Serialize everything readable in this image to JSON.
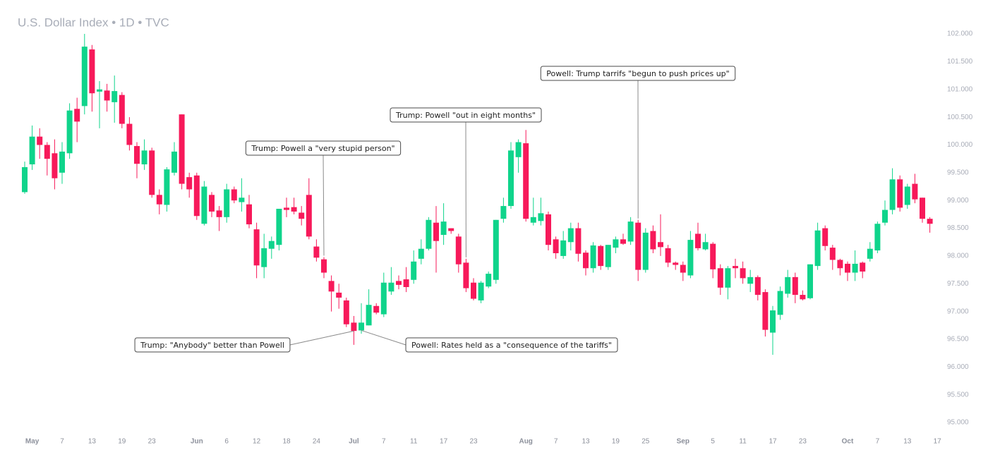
{
  "chart_data": {
    "type": "candlestick",
    "title": "U.S. Dollar Index • 1D • TVC",
    "up_color": "#0fd48b",
    "down_color": "#f7195a",
    "ylim": [
      94.29,
      102.61
    ],
    "yticks": [
      {
        "value": 95,
        "label": "95.000"
      },
      {
        "value": 95.5,
        "label": "95.500"
      },
      {
        "value": 96,
        "label": "96.000"
      },
      {
        "value": 96.5,
        "label": "96.500"
      },
      {
        "value": 97,
        "label": "97.000"
      },
      {
        "value": 97.5,
        "label": "97.500"
      },
      {
        "value": 98,
        "label": "98.000"
      },
      {
        "value": 98.5,
        "label": "98.500"
      },
      {
        "value": 99,
        "label": "99.000"
      },
      {
        "value": 99.5,
        "label": "99.500"
      },
      {
        "value": 100,
        "label": "100.000"
      },
      {
        "value": 100.5,
        "label": "100.500"
      },
      {
        "value": 101,
        "label": "101.000"
      },
      {
        "value": 101.5,
        "label": "101.500"
      },
      {
        "value": 102,
        "label": "102.000"
      }
    ],
    "categories": [
      null,
      "May",
      null,
      null,
      null,
      "7",
      null,
      null,
      null,
      "13",
      null,
      null,
      null,
      "19",
      null,
      null,
      null,
      "23",
      null,
      null,
      null,
      null,
      null,
      "Jun",
      null,
      null,
      null,
      "6",
      null,
      null,
      null,
      "12",
      null,
      null,
      null,
      "18",
      null,
      null,
      null,
      "24",
      null,
      null,
      null,
      null,
      "Jul",
      null,
      null,
      null,
      "7",
      null,
      null,
      null,
      "11",
      null,
      null,
      null,
      "17",
      null,
      null,
      null,
      "23",
      null,
      null,
      null,
      null,
      null,
      null,
      "Aug",
      null,
      null,
      null,
      "7",
      null,
      null,
      null,
      "13",
      null,
      null,
      null,
      "19",
      null,
      null,
      null,
      "25",
      null,
      null,
      null,
      null,
      "Sep",
      null,
      null,
      null,
      "5",
      null,
      null,
      null,
      "11",
      null,
      null,
      null,
      "17",
      null,
      null,
      null,
      "23",
      null,
      null,
      null,
      null,
      null,
      "Oct",
      null,
      null,
      null,
      "7",
      null,
      null,
      null,
      "13",
      null,
      null,
      null,
      "17"
    ],
    "open": [
      99.15,
      99.65,
      100.15,
      100.0,
      99.85,
      99.5,
      99.85,
      100.65,
      100.7,
      101.72,
      100.96,
      100.98,
      100.77,
      100.9,
      100.38,
      99.98,
      99.65,
      99.9,
      99.1,
      98.92,
      99.5,
      100.55,
      99.42,
      99.45,
      98.58,
      99.1,
      98.82,
      98.7,
      99.2,
      98.97,
      98.93,
      98.48,
      97.8,
      98.13,
      98.2,
      98.87,
      98.88,
      98.78,
      99.1,
      98.17,
      97.94,
      97.55,
      97.34,
      97.2,
      96.8,
      96.66,
      96.75,
      97.1,
      96.95,
      97.36,
      97.55,
      97.58,
      97.57,
      97.95,
      98.13,
      98.6,
      98.38,
      98.5,
      98.35,
      97.88,
      97.52,
      97.2,
      97.45,
      97.57,
      98.67,
      98.9,
      99.78,
      100.03,
      98.6,
      98.63,
      98.75,
      98.3,
      98.0,
      98.25,
      98.5,
      98.06,
      97.78,
      98.18,
      97.8,
      98.15,
      98.3,
      98.26,
      98.6,
      97.75,
      98.45,
      98.25,
      98.14,
      97.88,
      97.84,
      97.65,
      98.4,
      98.12,
      98.22,
      97.78,
      97.43,
      97.82,
      97.78,
      97.5,
      97.62,
      97.35,
      96.62,
      96.94,
      97.32,
      97.62,
      97.3,
      97.24,
      97.82,
      98.5,
      98.15,
      97.93,
      97.86,
      97.7,
      97.88,
      97.95,
      98.1,
      98.6,
      98.83,
      99.38,
      98.92,
      99.3,
      99.05,
      98.67,
      null
    ],
    "high": [
      99.7,
      100.35,
      100.3,
      100.05,
      100.1,
      100.05,
      100.75,
      100.85,
      102.0,
      101.8,
      101.15,
      101.1,
      101.25,
      100.95,
      100.5,
      100.05,
      100.1,
      99.95,
      99.2,
      99.6,
      100.05,
      100.55,
      99.5,
      99.5,
      99.35,
      99.15,
      98.9,
      99.3,
      99.25,
      99.4,
      99.1,
      98.6,
      98.4,
      98.35,
      98.85,
      99.05,
      99.05,
      98.9,
      99.4,
      98.3,
      97.98,
      97.65,
      97.5,
      97.25,
      96.92,
      97.15,
      97.4,
      97.15,
      97.7,
      97.8,
      97.65,
      97.8,
      98.1,
      98.3,
      98.7,
      98.9,
      98.95,
      98.5,
      98.4,
      97.95,
      97.6,
      97.55,
      97.72,
      98.65,
      99.05,
      100.05,
      100.1,
      100.27,
      99.05,
      99.05,
      98.8,
      98.35,
      98.45,
      98.6,
      98.6,
      98.1,
      98.25,
      98.2,
      98.2,
      98.35,
      98.4,
      98.7,
      98.65,
      98.5,
      98.55,
      98.75,
      98.2,
      97.9,
      97.9,
      98.45,
      98.6,
      98.4,
      98.25,
      97.85,
      97.82,
      97.95,
      97.9,
      97.75,
      97.65,
      97.4,
      97.1,
      97.45,
      97.75,
      97.7,
      97.38,
      97.85,
      98.6,
      98.55,
      98.2,
      97.95,
      97.9,
      98.1,
      97.9,
      98.25,
      98.62,
      99.0,
      99.58,
      99.45,
      99.3,
      99.48,
      99.05,
      98.7,
      null
    ],
    "low": [
      99.12,
      99.55,
      99.75,
      99.45,
      99.2,
      99.3,
      99.75,
      100.05,
      100.55,
      100.6,
      100.3,
      100.6,
      100.4,
      100.3,
      99.9,
      99.4,
      99.55,
      99.05,
      98.75,
      98.8,
      99.45,
      99.2,
      99.05,
      98.65,
      98.55,
      98.7,
      98.45,
      98.6,
      98.95,
      98.8,
      98.5,
      97.6,
      97.6,
      97.95,
      98.1,
      98.7,
      98.75,
      98.55,
      98.3,
      97.9,
      97.6,
      97.0,
      97.05,
      96.72,
      96.4,
      96.6,
      96.75,
      96.95,
      96.9,
      97.3,
      97.4,
      97.35,
      97.5,
      97.85,
      98.1,
      97.7,
      98.2,
      98.4,
      97.7,
      97.35,
      97.2,
      97.15,
      97.42,
      97.5,
      98.6,
      98.85,
      99.5,
      98.62,
      98.55,
      98.55,
      98.1,
      97.95,
      97.95,
      98.1,
      97.9,
      97.65,
      97.7,
      97.75,
      97.75,
      98.05,
      98.2,
      98.2,
      97.55,
      97.7,
      98.05,
      98.0,
      97.8,
      97.75,
      97.55,
      97.6,
      98.1,
      98.1,
      97.6,
      97.3,
      97.22,
      97.6,
      97.5,
      97.35,
      97.2,
      96.55,
      96.22,
      96.85,
      97.25,
      97.15,
      97.2,
      97.22,
      97.75,
      98.1,
      97.75,
      97.65,
      97.55,
      97.55,
      97.6,
      97.9,
      98.05,
      98.55,
      98.75,
      98.8,
      98.85,
      98.95,
      98.6,
      98.42,
      null
    ],
    "close": [
      99.6,
      100.15,
      100.0,
      99.75,
      99.4,
      99.88,
      100.62,
      100.42,
      101.77,
      100.93,
      101.0,
      100.8,
      100.97,
      100.38,
      100.0,
      99.66,
      99.9,
      99.1,
      98.93,
      99.56,
      99.88,
      99.3,
      99.2,
      98.72,
      99.25,
      98.8,
      98.7,
      99.2,
      99.0,
      99.05,
      98.57,
      97.83,
      98.14,
      98.27,
      98.85,
      98.83,
      98.8,
      98.67,
      98.35,
      97.97,
      97.7,
      97.36,
      97.25,
      96.77,
      96.65,
      96.8,
      97.12,
      96.98,
      97.52,
      97.52,
      97.48,
      97.44,
      97.9,
      98.13,
      98.65,
      98.27,
      98.62,
      98.45,
      97.85,
      97.42,
      97.23,
      97.52,
      97.68,
      98.65,
      98.9,
      99.9,
      100.05,
      98.67,
      98.7,
      98.77,
      98.2,
      98.05,
      98.28,
      98.5,
      98.04,
      97.78,
      98.19,
      97.82,
      98.2,
      98.3,
      98.22,
      98.62,
      97.75,
      98.42,
      98.12,
      98.16,
      97.88,
      97.84,
      97.7,
      98.29,
      98.14,
      98.25,
      97.76,
      97.43,
      97.78,
      97.78,
      97.6,
      97.62,
      97.3,
      96.67,
      97.02,
      97.37,
      97.62,
      97.3,
      97.22,
      97.85,
      98.46,
      98.18,
      97.93,
      97.78,
      97.7,
      97.86,
      97.72,
      98.13,
      98.58,
      98.83,
      99.38,
      98.87,
      99.25,
      99.02,
      98.67,
      98.58,
      null
    ],
    "annotations": [
      "Trump: Powell a \"very stupid person\"",
      "Trump: Powell \"out in eight months\"",
      "Powell: Trump tarrifs \"begun to push prices up\"",
      "Trump: \"Anybody\" better than Powell",
      "Powell: Rates held as a \"consequence of the tariffs\""
    ]
  }
}
